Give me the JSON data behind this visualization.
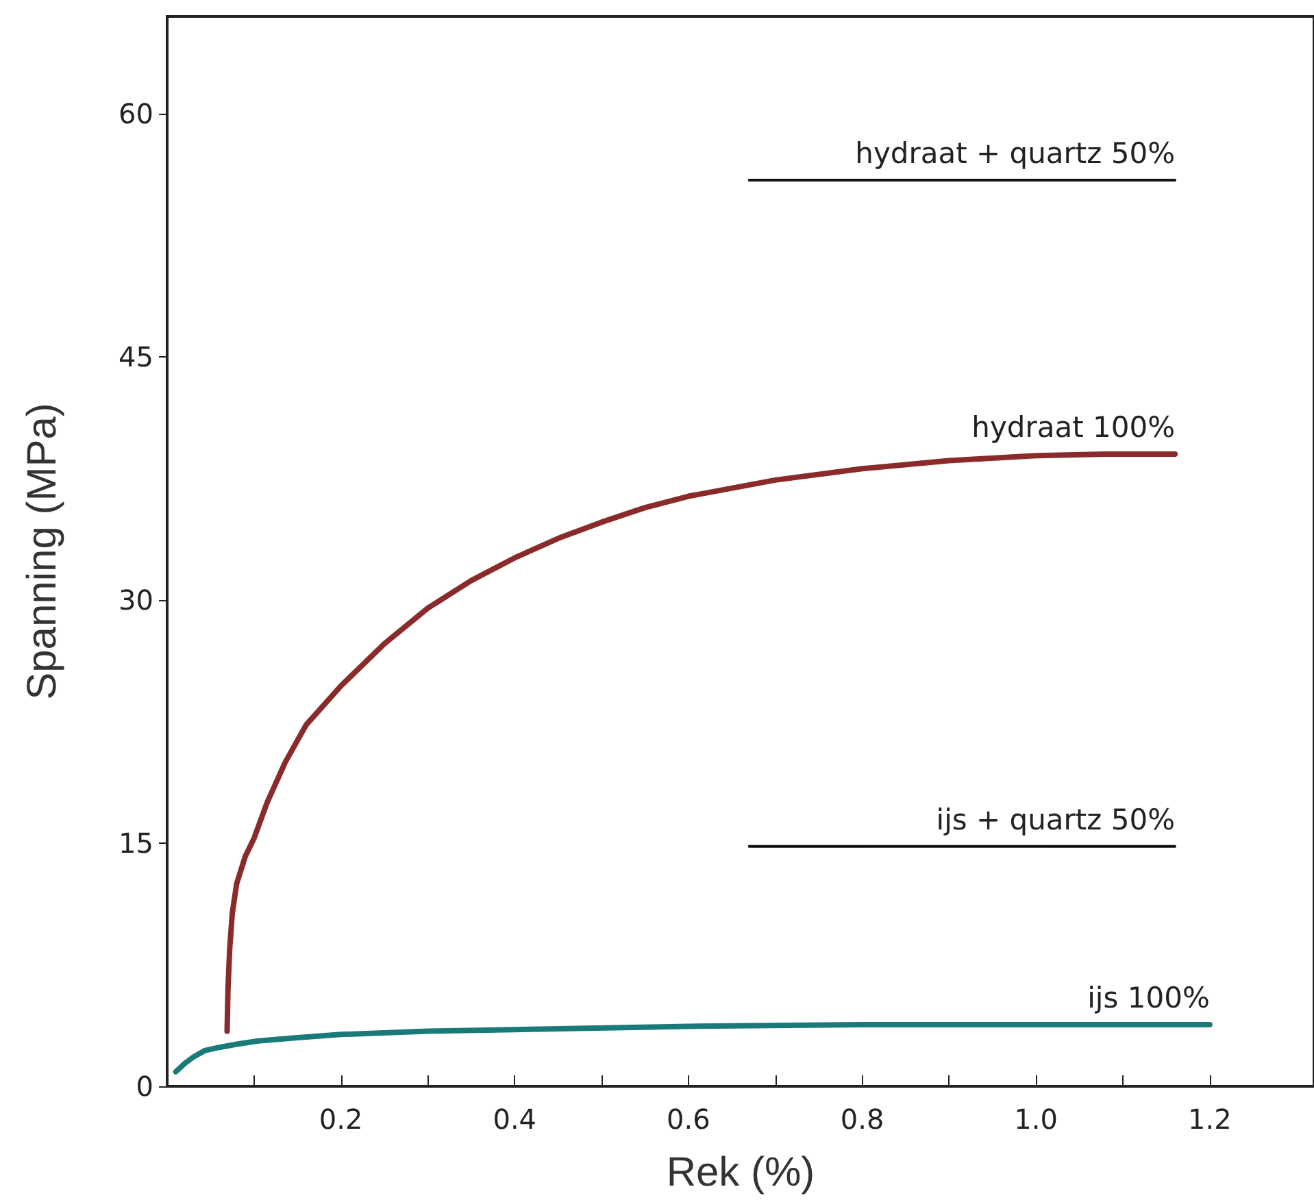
{
  "chart_data": {
    "type": "line",
    "xlabel": "Rek (%)",
    "ylabel": "Spanning (MPa)",
    "xlim": [
      0,
      1.32
    ],
    "ylim": [
      0,
      66
    ],
    "xticks": [
      {
        "value": 0.1,
        "label": null
      },
      0.2,
      {
        "value": 0.3,
        "label": null
      },
      0.4,
      {
        "value": 0.5,
        "label": null
      },
      0.6,
      {
        "value": 0.7,
        "label": null
      },
      0.8,
      {
        "value": 0.9,
        "label": null
      },
      {
        "value": 1.0,
        "label": "1.0"
      },
      {
        "value": 1.1,
        "label": null
      },
      1.2
    ],
    "yticks": [
      0,
      15,
      30,
      45,
      60
    ],
    "grid": false,
    "legend": false,
    "marker": "none",
    "line_style": "solid",
    "series": [
      {
        "name": "hydraat + quartz 50%",
        "color": "#111111",
        "x": [
          0.67,
          1.16
        ],
        "values": [
          55.9,
          55.9
        ]
      },
      {
        "name": "hydraat 100%",
        "color": "#8b2a2a",
        "x": [
          0.069,
          0.07,
          0.072,
          0.075,
          0.08,
          0.09,
          0.1,
          0.115,
          0.136,
          0.16,
          0.2,
          0.25,
          0.3,
          0.35,
          0.4,
          0.45,
          0.5,
          0.55,
          0.6,
          0.7,
          0.8,
          0.9,
          1.0,
          1.08,
          1.16
        ],
        "values": [
          3.4,
          6,
          8.5,
          10.7,
          12.5,
          14.2,
          15.3,
          17.5,
          20,
          22.3,
          24.7,
          27.3,
          29.5,
          31.2,
          32.6,
          33.8,
          34.8,
          35.7,
          36.4,
          37.4,
          38.1,
          38.6,
          38.9,
          39.0,
          39.0
        ]
      },
      {
        "name": "ijs + quartz 50%",
        "color": "#111111",
        "x": [
          0.67,
          1.16
        ],
        "values": [
          14.8,
          14.8
        ]
      },
      {
        "name": "ijs 100%",
        "color": "#1a7a7a",
        "x": [
          0.01,
          0.02,
          0.03,
          0.043,
          0.06,
          0.08,
          0.105,
          0.15,
          0.2,
          0.3,
          0.4,
          0.6,
          0.8,
          1.0,
          1.2
        ],
        "values": [
          0.9,
          1.4,
          1.8,
          2.2,
          2.4,
          2.6,
          2.8,
          3.0,
          3.2,
          3.4,
          3.5,
          3.7,
          3.8,
          3.8,
          3.8
        ]
      }
    ]
  }
}
